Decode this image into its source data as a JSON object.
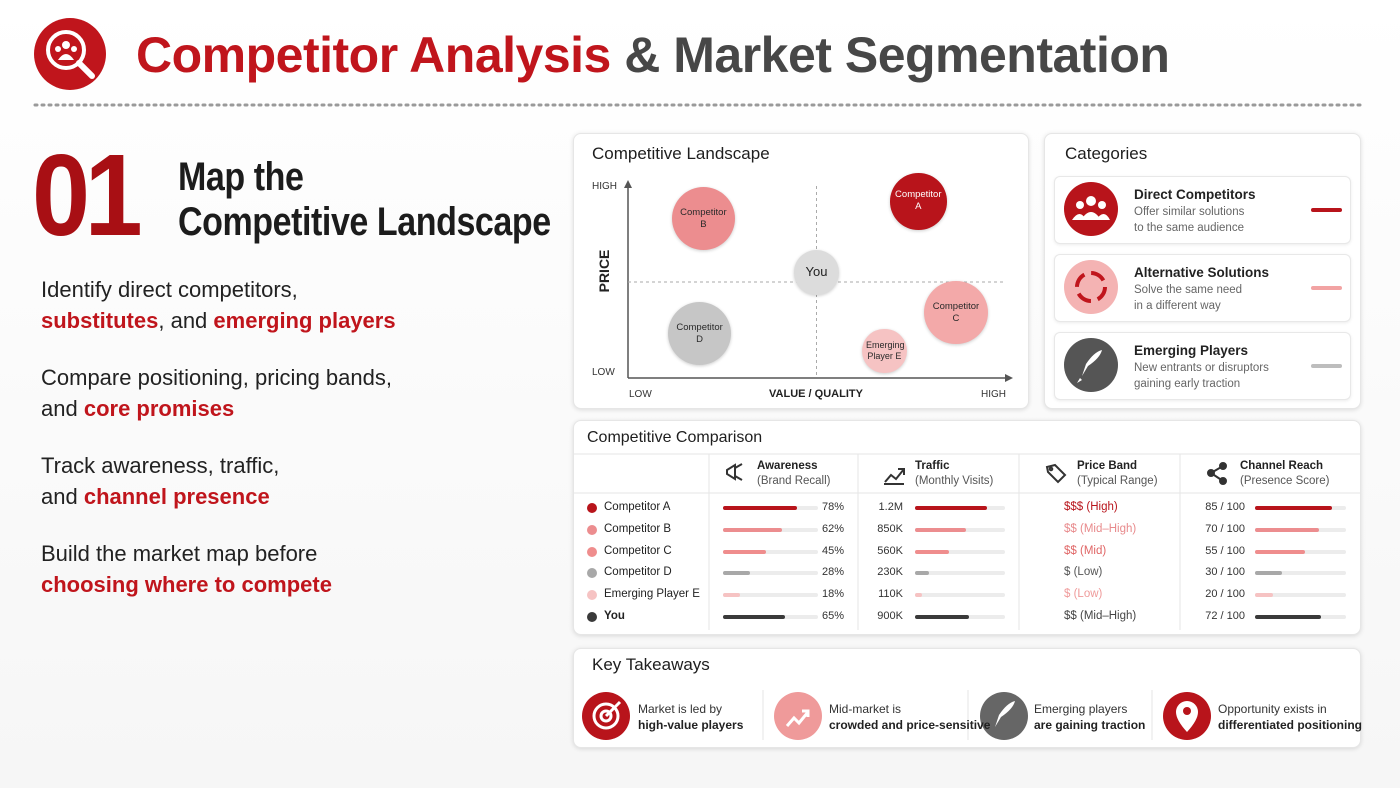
{
  "header": {
    "title_main": "Competitor Analysis",
    "title_rest": "& Market Segmentation"
  },
  "section": {
    "number": "01",
    "title_lines": [
      "Map the",
      "Competitive Landscape"
    ]
  },
  "points": [
    {
      "lines": [
        [
          {
            "text": "Identify direct competitors,",
            "em": false
          }
        ],
        [
          {
            "text": "substitutes",
            "em": true
          },
          {
            "text": ", and ",
            "em": false
          },
          {
            "text": "emerging players",
            "em": true
          }
        ]
      ]
    },
    {
      "lines": [
        [
          {
            "text": "Compare positioning, pricing bands,",
            "em": false
          }
        ],
        [
          {
            "text": "and ",
            "em": false
          },
          {
            "text": "core promises",
            "em": true
          }
        ]
      ]
    },
    {
      "lines": [
        [
          {
            "text": "Track awareness, traffic,",
            "em": false
          }
        ],
        [
          {
            "text": "and ",
            "em": false
          },
          {
            "text": "channel presence",
            "em": true
          }
        ]
      ]
    },
    {
      "lines": [
        [
          {
            "text": "Build the market map before",
            "em": false
          }
        ],
        [
          {
            "text": "choosing where to compete",
            "em": true
          }
        ]
      ]
    }
  ],
  "landscape": {
    "title": "Competitive Landscape",
    "y_label": "PRICE",
    "x_label": "VALUE / QUALITY",
    "y_low": "LOW",
    "y_high": "HIGH",
    "x_low": "LOW",
    "x_high": "HIGH",
    "xlim": [
      0,
      10
    ],
    "ylim": [
      0,
      10
    ],
    "bubbles": [
      {
        "label": "Competitor A",
        "x": 7.7,
        "y": 9.2,
        "size": 8,
        "color": "#b8141b",
        "text_color": "#ffffff"
      },
      {
        "label": "Competitor B",
        "x": 2.0,
        "y": 8.3,
        "size": 10,
        "color": "#ec8d8f",
        "text_color": "#2a2a2a"
      },
      {
        "label": "Competitor C",
        "x": 8.7,
        "y": 3.4,
        "size": 10,
        "color": "#f3a9a9",
        "text_color": "#2a2a2a"
      },
      {
        "label": "Competitor D",
        "x": 1.9,
        "y": 2.3,
        "size": 10,
        "color": "#c6c6c6",
        "text_color": "#2a2a2a"
      },
      {
        "label": "Emerging Player E",
        "x": 6.8,
        "y": 1.4,
        "size": 5,
        "color": "#f6c3c3",
        "text_color": "#2a2a2a"
      },
      {
        "label": "You",
        "x": 5.0,
        "y": 5.5,
        "size": 5,
        "color": "#dcdcdc",
        "text_color": "#222222"
      }
    ]
  },
  "categories": {
    "title": "Categories",
    "items": [
      {
        "name": "Direct Competitors",
        "desc_lines": [
          "Offer similar solutions",
          "to the same audience"
        ],
        "color": "#b8141b"
      },
      {
        "name": "Alternative Solutions",
        "desc_lines": [
          "Solve the same need",
          "in a different way"
        ],
        "color": "#f2a3a3"
      },
      {
        "name": "Emerging Players",
        "desc_lines": [
          "New entrants or disruptors",
          "gaining early traction"
        ],
        "color": "#bdbdbd"
      }
    ]
  },
  "comparison": {
    "title": "Competitive Comparison",
    "columns": {
      "awareness": {
        "name": "Awareness",
        "sub": "(Brand Recall)",
        "xlim": [
          0,
          100
        ]
      },
      "traffic": {
        "name": "Traffic",
        "sub": "(Monthly Visits)",
        "xlim": [
          0,
          1500000
        ]
      },
      "price_band": {
        "name": "Price Band",
        "sub": "(Typical Range)"
      },
      "reach": {
        "name": "Channel Reach",
        "sub": "(Presence Score)",
        "xlim": [
          0,
          100
        ]
      }
    },
    "rows": [
      {
        "name": "Competitor A",
        "color": "#b8141b",
        "bold": false,
        "awareness": 78,
        "awareness_label": "78%",
        "traffic": 1200000,
        "traffic_label": "1.2M",
        "price_band": "$$$ (High)",
        "price_color": "#b8141b",
        "reach": 85,
        "reach_label": "85 / 100"
      },
      {
        "name": "Competitor B",
        "color": "#ec8d8f",
        "bold": false,
        "awareness": 62,
        "awareness_label": "62%",
        "traffic": 850000,
        "traffic_label": "850K",
        "price_band": "$$ (Mid–High)",
        "price_color": "#e88a8c",
        "reach": 70,
        "reach_label": "70 / 100"
      },
      {
        "name": "Competitor C",
        "color": "#ef8d8d",
        "bold": false,
        "awareness": 45,
        "awareness_label": "45%",
        "traffic": 560000,
        "traffic_label": "560K",
        "price_band": "$$ (Mid)",
        "price_color": "#e06666",
        "reach": 55,
        "reach_label": "55 / 100"
      },
      {
        "name": "Competitor D",
        "color": "#a8a8a8",
        "bold": false,
        "awareness": 28,
        "awareness_label": "28%",
        "traffic": 230000,
        "traffic_label": "230K",
        "price_band": "$ (Low)",
        "price_color": "#555555",
        "reach": 30,
        "reach_label": "30 / 100"
      },
      {
        "name": "Emerging Player E",
        "color": "#f6c3c3",
        "bold": false,
        "awareness": 18,
        "awareness_label": "18%",
        "traffic": 110000,
        "traffic_label": "110K",
        "price_band": "$ (Low)",
        "price_color": "#ef9a9a",
        "reach": 20,
        "reach_label": "20 / 100"
      },
      {
        "name": "You",
        "color": "#3a3a3a",
        "bold": true,
        "awareness": 65,
        "awareness_label": "65%",
        "traffic": 900000,
        "traffic_label": "900K",
        "price_band": "$$ (Mid–High)",
        "price_color": "#444444",
        "reach": 72,
        "reach_label": "72 / 100"
      }
    ]
  },
  "takeaways": {
    "title": "Key Takeaways",
    "items": [
      {
        "line1": "Market is led by",
        "line2": "high-value players"
      },
      {
        "line1": "Mid-market is",
        "line2": "crowded and price-sensitive"
      },
      {
        "line1": "Emerging players",
        "line2": "are gaining traction"
      },
      {
        "line1": "Opportunity exists in",
        "line2": "differentiated positioning"
      }
    ]
  }
}
